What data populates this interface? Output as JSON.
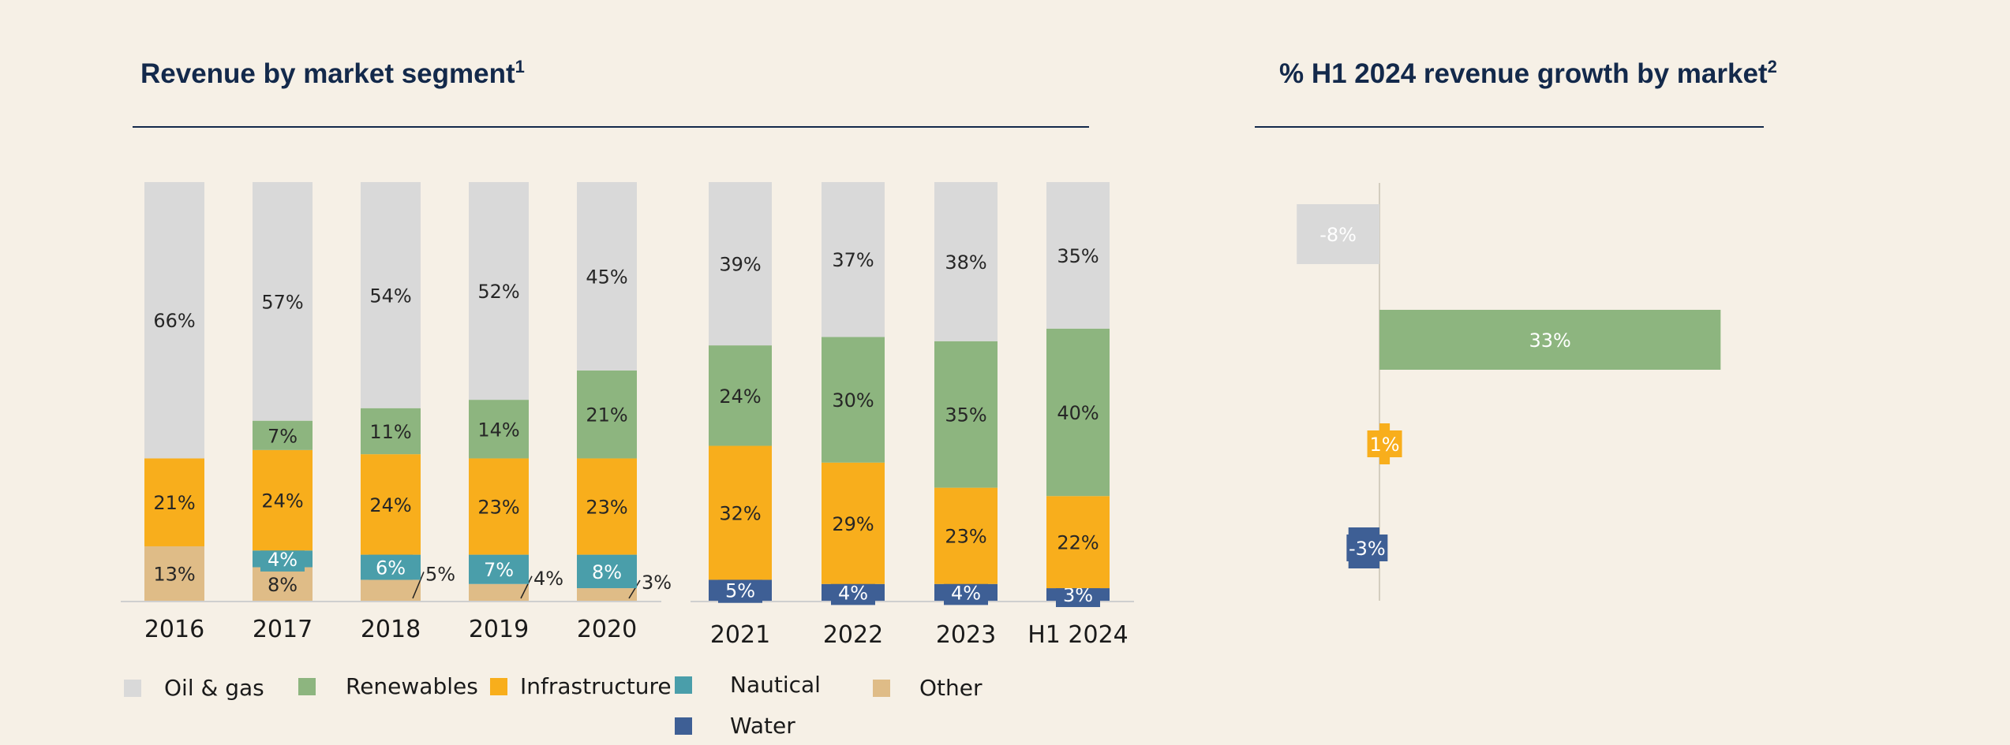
{
  "left_chart": {
    "title": "Revenue by market segment",
    "title_sup": "1"
  },
  "right_chart": {
    "title": "% H1 2024 revenue growth by market",
    "title_sup": "2"
  },
  "legend": [
    {
      "key": "oil_gas",
      "label": "Oil & gas",
      "color": "#d9d9d9"
    },
    {
      "key": "renewables",
      "label": "Renewables",
      "color": "#8db57f"
    },
    {
      "key": "infrastructure",
      "label": "Infrastructure",
      "color": "#f8ae1c"
    },
    {
      "key": "nautical",
      "label": "Nautical",
      "color": "#4a9eaa"
    },
    {
      "key": "other",
      "label": "Other",
      "color": "#dfbc87"
    },
    {
      "key": "water",
      "label": "Water",
      "color": "#3e5f95"
    }
  ],
  "chart_data": [
    {
      "type": "bar",
      "stacked": true,
      "title": "Revenue by market segment¹",
      "categories": [
        "2016",
        "2017",
        "2018",
        "2019",
        "2020",
        "2021",
        "2022",
        "2023",
        "H1 2024"
      ],
      "series": [
        {
          "name": "Other",
          "values": [
            13,
            8,
            5,
            4,
            3,
            null,
            null,
            null,
            null
          ]
        },
        {
          "name": "Water",
          "values": [
            null,
            null,
            null,
            null,
            null,
            5,
            4,
            4,
            3
          ]
        },
        {
          "name": "Nautical",
          "values": [
            null,
            4,
            6,
            7,
            8,
            null,
            null,
            null,
            null
          ]
        },
        {
          "name": "Infrastructure",
          "values": [
            21,
            24,
            24,
            23,
            23,
            32,
            29,
            23,
            22
          ]
        },
        {
          "name": "Renewables",
          "values": [
            null,
            7,
            11,
            14,
            21,
            24,
            30,
            35,
            40
          ]
        },
        {
          "name": "Oil & gas",
          "values": [
            66,
            57,
            54,
            52,
            45,
            39,
            37,
            38,
            35
          ]
        }
      ],
      "value_labels": [
        {
          "series": "Other",
          "labels": [
            "13%",
            "8%",
            "5%",
            "4%",
            "3%",
            "",
            "",
            "",
            ""
          ]
        },
        {
          "series": "Water",
          "labels": [
            "",
            "",
            "",
            "",
            "",
            "5%",
            "4%",
            "4%",
            "3%"
          ]
        },
        {
          "series": "Nautical",
          "labels": [
            "",
            "4%",
            "6%",
            "7%",
            "8%",
            "",
            "",
            "",
            ""
          ]
        },
        {
          "series": "Infrastructure",
          "labels": [
            "21%",
            "24%",
            "24%",
            "23%",
            "23%",
            "32%",
            "29%",
            "23%",
            "22%"
          ]
        },
        {
          "series": "Renewables",
          "labels": [
            "",
            "7%",
            "11%",
            "14%",
            "21%",
            "24%",
            "30%",
            "35%",
            "40%"
          ]
        },
        {
          "series": "Oil & gas",
          "labels": [
            "66%",
            "57%",
            "54%",
            "52%",
            "45%",
            "39%",
            "37%",
            "38%",
            "35%"
          ]
        }
      ],
      "ylim": [
        0,
        100
      ]
    },
    {
      "type": "bar",
      "orientation": "horizontal",
      "title": "% H1 2024 revenue growth by market²",
      "categories": [
        "Oil & gas",
        "Renewables",
        "Infrastructure",
        "Water"
      ],
      "values": [
        -8,
        33,
        1,
        -3
      ],
      "value_labels": [
        "-8%",
        "33%",
        "1%",
        "-3%"
      ],
      "colors": [
        "#d9d9d9",
        "#8db57f",
        "#f8ae1c",
        "#3e5f95"
      ]
    }
  ]
}
